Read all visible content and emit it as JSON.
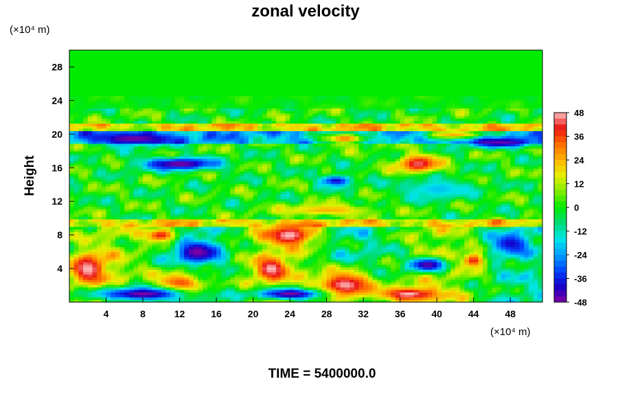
{
  "chart_data": {
    "type": "heatmap",
    "title": "zonal velocity",
    "ylabel": "Height",
    "xlabel": "",
    "x_units": "(×10⁴ m)",
    "y_units": "(×10⁴ m)",
    "x_ticks": [
      4,
      8,
      12,
      16,
      20,
      24,
      28,
      32,
      36,
      40,
      44,
      48
    ],
    "y_ticks": [
      4,
      8,
      12,
      16,
      20,
      24,
      28
    ],
    "xlim": [
      0,
      51.5
    ],
    "ylim": [
      0,
      30
    ],
    "colorbar": {
      "ticks": [
        48,
        36,
        24,
        12,
        0,
        -12,
        -24,
        -36,
        -48
      ],
      "range": [
        -48,
        48
      ]
    },
    "field_features": [
      {
        "x": 30,
        "y": 2,
        "value": 48,
        "rx": 4,
        "ry": 2.2
      },
      {
        "x": 2,
        "y": 4,
        "value": 48,
        "rx": 2.5,
        "ry": 2.2
      },
      {
        "x": 24,
        "y": 8,
        "value": 48,
        "rx": 3.2,
        "ry": 1.5
      },
      {
        "x": 10,
        "y": 8,
        "value": 40,
        "rx": 2.2,
        "ry": 1.0
      },
      {
        "x": 22,
        "y": 4,
        "value": 48,
        "rx": 2.2,
        "ry": 1.6
      },
      {
        "x": 12,
        "y": 2,
        "value": 40,
        "rx": 3.5,
        "ry": 2.0
      },
      {
        "x": 37,
        "y": 1,
        "value": 48,
        "rx": 4.0,
        "ry": 1.0
      },
      {
        "x": 44,
        "y": 5,
        "value": 40,
        "rx": 1.5,
        "ry": 1.0
      },
      {
        "x": 38,
        "y": 16.5,
        "value": 44,
        "rx": 2.8,
        "ry": 1.3
      },
      {
        "x": 30,
        "y": 19.5,
        "value": 30,
        "rx": 3.0,
        "ry": 0.8
      },
      {
        "x": 42,
        "y": 20,
        "value": 26,
        "rx": 4.0,
        "ry": 0.6
      },
      {
        "x": 28,
        "y": 11,
        "value": 24,
        "rx": 6.0,
        "ry": 0.8
      },
      {
        "x": 14,
        "y": 6,
        "value": -48,
        "rx": 2.8,
        "ry": 1.6
      },
      {
        "x": 8,
        "y": 1,
        "value": -48,
        "rx": 6.0,
        "ry": 1.0
      },
      {
        "x": 39,
        "y": 4.5,
        "value": -46,
        "rx": 2.5,
        "ry": 1.0
      },
      {
        "x": 48,
        "y": 7,
        "value": -40,
        "rx": 2.5,
        "ry": 1.5
      },
      {
        "x": 12,
        "y": 16.5,
        "value": -48,
        "rx": 5.0,
        "ry": 0.9
      },
      {
        "x": 7,
        "y": 19.5,
        "value": -48,
        "rx": 5.0,
        "ry": 0.9
      },
      {
        "x": 47,
        "y": 19,
        "value": -46,
        "rx": 4.5,
        "ry": 0.7
      },
      {
        "x": 29,
        "y": 14.5,
        "value": -40,
        "rx": 2.0,
        "ry": 0.8
      },
      {
        "x": 24,
        "y": 1,
        "value": -48,
        "rx": 4.5,
        "ry": 0.8
      },
      {
        "x": 40,
        "y": 13.5,
        "value": -20,
        "rx": 5.0,
        "ry": 1.5
      }
    ]
  },
  "footer": {
    "time_label": "TIME = 5400000.0"
  }
}
